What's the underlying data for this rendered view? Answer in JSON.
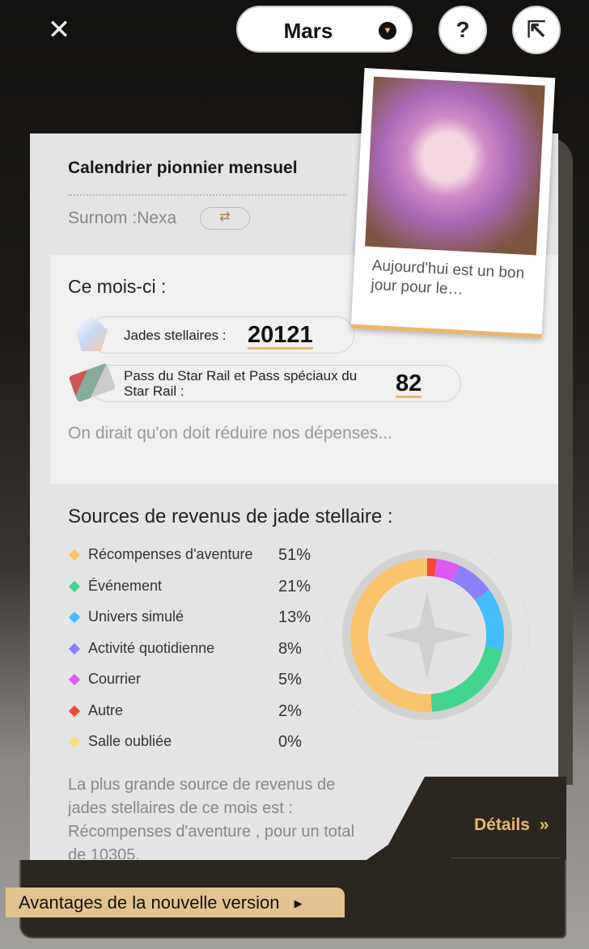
{
  "header": {
    "month": "Mars",
    "close_icon": "close-icon",
    "help_label": "?",
    "share_icon": "share-icon"
  },
  "card": {
    "title": "Calendrier pionnier mensuel",
    "nickname": "Surnom :Nexa",
    "swap_icon": "⇄",
    "photo_caption": "Aujourd'hui est un bon jour pour le…"
  },
  "this_month": {
    "title": "Ce mois-ci :",
    "jade_label": "Jades stellaires :",
    "jade_value": "20121",
    "pass_label": "Pass du Star Rail et Pass spéciaux du Star Rail :",
    "pass_value": "82",
    "comment": "On dirait qu'on doit réduire nos dépenses..."
  },
  "sources": {
    "title": "Sources de revenus de jade stellaire :",
    "items": [
      {
        "label": "Récompenses d'aventure",
        "pct": "51%",
        "value": 51,
        "color": "#f9c46b"
      },
      {
        "label": "Événement",
        "pct": "21%",
        "value": 21,
        "color": "#43d58f"
      },
      {
        "label": "Univers simulé",
        "pct": "13%",
        "value": 13,
        "color": "#45bdfb"
      },
      {
        "label": "Activité quotidienne",
        "pct": "8%",
        "value": 8,
        "color": "#8a80fa"
      },
      {
        "label": "Courrier",
        "pct": "5%",
        "value": 5,
        "color": "#dc5af0"
      },
      {
        "label": "Autre",
        "pct": "2%",
        "value": 2,
        "color": "#f0493a"
      },
      {
        "label": "Salle oubliée",
        "pct": "0%",
        "value": 0,
        "color": "#f8e07a"
      }
    ],
    "summary": "La plus grande source de revenus de jades stellaires de ce mois est : Récompenses d'aventure , pour un total de 10305."
  },
  "footer": {
    "details": "Détails",
    "details_arrow": "»",
    "new_version": "Avantages de la nouvelle version",
    "new_version_arrow": "▶"
  }
}
